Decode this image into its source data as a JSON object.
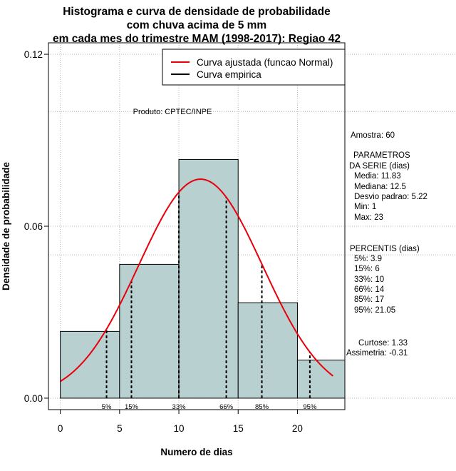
{
  "chart_data": {
    "type": "histogram",
    "title_lines": [
      "Histograma e curva de densidade de probabilidade",
      "com chuva acima de 5 mm",
      "em cada mes do trimestre MAM (1998-2017): Regiao 42"
    ],
    "xlabel": "Numero de dias",
    "ylabel": "Densidade de probabilidade",
    "xlim": [
      -1,
      24
    ],
    "ylim": [
      -0.004,
      0.124
    ],
    "x_ticks": [
      0,
      5,
      10,
      15,
      20
    ],
    "y_ticks": [
      0.0,
      0.06,
      0.12
    ],
    "y_tick_labels": [
      "0.00",
      "0.06",
      "0.12"
    ],
    "bins": [
      {
        "from": 0,
        "to": 5,
        "density": 0.0233
      },
      {
        "from": 5,
        "to": 10,
        "density": 0.0467
      },
      {
        "from": 10,
        "to": 15,
        "density": 0.0833
      },
      {
        "from": 15,
        "to": 20,
        "density": 0.0333
      },
      {
        "from": 20,
        "to": 24,
        "density": 0.0133
      }
    ],
    "bar_color": "#b9d0d1",
    "curve_color": "#e8000b",
    "normal_fit": {
      "mean": 11.83,
      "sd": 5.22,
      "x_from": 0,
      "x_to": 23
    },
    "percentile_lines": [
      {
        "label": "5%",
        "x": 3.9
      },
      {
        "label": "15%",
        "x": 6
      },
      {
        "label": "33%",
        "x": 10
      },
      {
        "label": "66%",
        "x": 14
      },
      {
        "label": "85%",
        "x": 17
      },
      {
        "label": "95%",
        "x": 21.05
      }
    ],
    "legend": {
      "placement": "top-right",
      "entries": [
        {
          "label": "Curva ajustada (funcao Normal)",
          "color": "#e8000b"
        },
        {
          "label": "Curva empirica",
          "color": "#000000"
        }
      ]
    },
    "annotation": "Produto: CPTEC/INPE",
    "stats": {
      "sample": "Amostra: 60",
      "params_header": [
        "PARAMETROS",
        "DA SERIE (dias)"
      ],
      "params": [
        "Media: 11.83",
        "Mediana: 12.5",
        "Desvio padrao: 5.22",
        "Min: 1",
        "Max: 23"
      ],
      "percentiles_header": "PERCENTIS (dias)",
      "percentiles": [
        "5%: 3.9",
        "15%: 6",
        "33%: 10",
        "66%: 14",
        "85%: 17",
        "95%: 21.05"
      ],
      "kurtosis": "Curtose: 1.33",
      "skewness": "Assimetria: -0.31"
    }
  }
}
